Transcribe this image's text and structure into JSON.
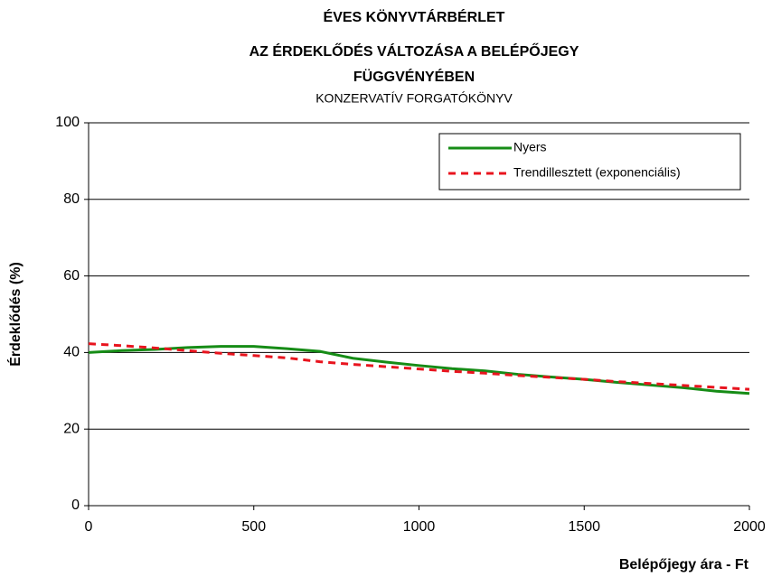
{
  "chart_data": {
    "type": "line",
    "title": [
      "ÉVES KÖNYVTÁRBÉRLET",
      "AZ ÉRDEKLŐDÉS VÁLTOZÁSA A BELÉPŐJEGY",
      "FÜGGVÉNYÉBEN"
    ],
    "subtitle": "KONZERVATÍV FORGATÓKÖNYV",
    "x_label": "Belépőjegy ára - Ft",
    "y_label": "Érdeklődés (%)",
    "x": [
      0,
      100,
      200,
      300,
      400,
      500,
      600,
      700,
      800,
      900,
      1000,
      1100,
      1200,
      1300,
      1400,
      1500,
      1600,
      1700,
      1800,
      1900,
      2000
    ],
    "series": [
      {
        "name": "Nyers",
        "color": "#168c16",
        "dash": false,
        "values": [
          40,
          40.5,
          40.8,
          41.3,
          41.6,
          41.6,
          41,
          40.3,
          38.5,
          37.5,
          36.6,
          35.8,
          35.2,
          34.3,
          33.6,
          33,
          32.2,
          31.5,
          30.8,
          29.9,
          29.3
        ]
      },
      {
        "name": "Trendillesztett (exponenciális)",
        "color": "#e8141e",
        "dash": true,
        "values": [
          42.3,
          41.8,
          41.2,
          40.5,
          39.8,
          39.2,
          38.6,
          37.6,
          36.9,
          36.3,
          35.7,
          35.1,
          34.6,
          34,
          33.5,
          33,
          32.4,
          31.9,
          31.4,
          30.9,
          30.4
        ]
      }
    ],
    "xlim": [
      0,
      2000
    ],
    "xticks": [
      0,
      500,
      1000,
      1500,
      2000
    ],
    "ylim": [
      0,
      100
    ],
    "yticks": [
      0,
      20,
      40,
      60,
      80,
      100
    ],
    "grid": true,
    "legend": "top-right"
  }
}
